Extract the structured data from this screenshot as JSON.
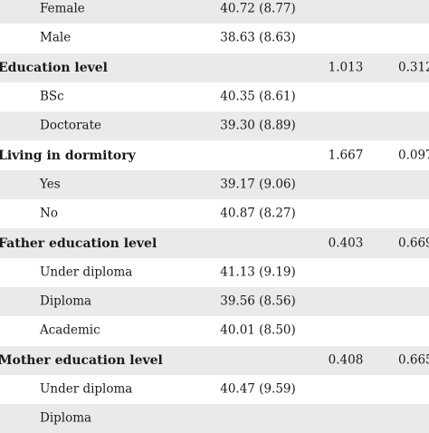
{
  "rows": [
    {
      "label": "Female",
      "mean": "40.72 (8.77)",
      "stat": "",
      "p": "",
      "group": false,
      "shaded": true
    },
    {
      "label": "Male",
      "mean": "38.63 (8.63)",
      "stat": "",
      "p": "",
      "group": false,
      "shaded": false
    },
    {
      "label": "Education level",
      "mean": "",
      "stat": "1.013",
      "p": "0.312",
      "group": true,
      "shaded": true
    },
    {
      "label": "BSc",
      "mean": "40.35 (8.61)",
      "stat": "",
      "p": "",
      "group": false,
      "shaded": false
    },
    {
      "label": "Doctorate",
      "mean": "39.30 (8.89)",
      "stat": "",
      "p": "",
      "group": false,
      "shaded": true
    },
    {
      "label": "Living in dormitory",
      "mean": "",
      "stat": "1.667",
      "p": "0.097",
      "group": true,
      "shaded": false
    },
    {
      "label": "Yes",
      "mean": "39.17 (9.06)",
      "stat": "",
      "p": "",
      "group": false,
      "shaded": true
    },
    {
      "label": "No",
      "mean": "40.87 (8.27)",
      "stat": "",
      "p": "",
      "group": false,
      "shaded": false
    },
    {
      "label": "Father education level",
      "mean": "",
      "stat": "0.403",
      "p": "0.669",
      "group": true,
      "shaded": true
    },
    {
      "label": "Under diploma",
      "mean": "41.13 (9.19)",
      "stat": "",
      "p": "",
      "group": false,
      "shaded": false
    },
    {
      "label": "Diploma",
      "mean": "39.56 (8.56)",
      "stat": "",
      "p": "",
      "group": false,
      "shaded": true
    },
    {
      "label": "Academic",
      "mean": "40.01 (8.50)",
      "stat": "",
      "p": "",
      "group": false,
      "shaded": false
    },
    {
      "label": "Mother education level",
      "mean": "",
      "stat": "0.408",
      "p": "0.665",
      "group": true,
      "shaded": true
    },
    {
      "label": "Under diploma",
      "mean": "40.47 (9.59)",
      "stat": "",
      "p": "",
      "group": false,
      "shaded": false
    },
    {
      "label": "Diploma",
      "mean": "",
      "stat": "",
      "p": "",
      "group": false,
      "shaded": true
    }
  ]
}
